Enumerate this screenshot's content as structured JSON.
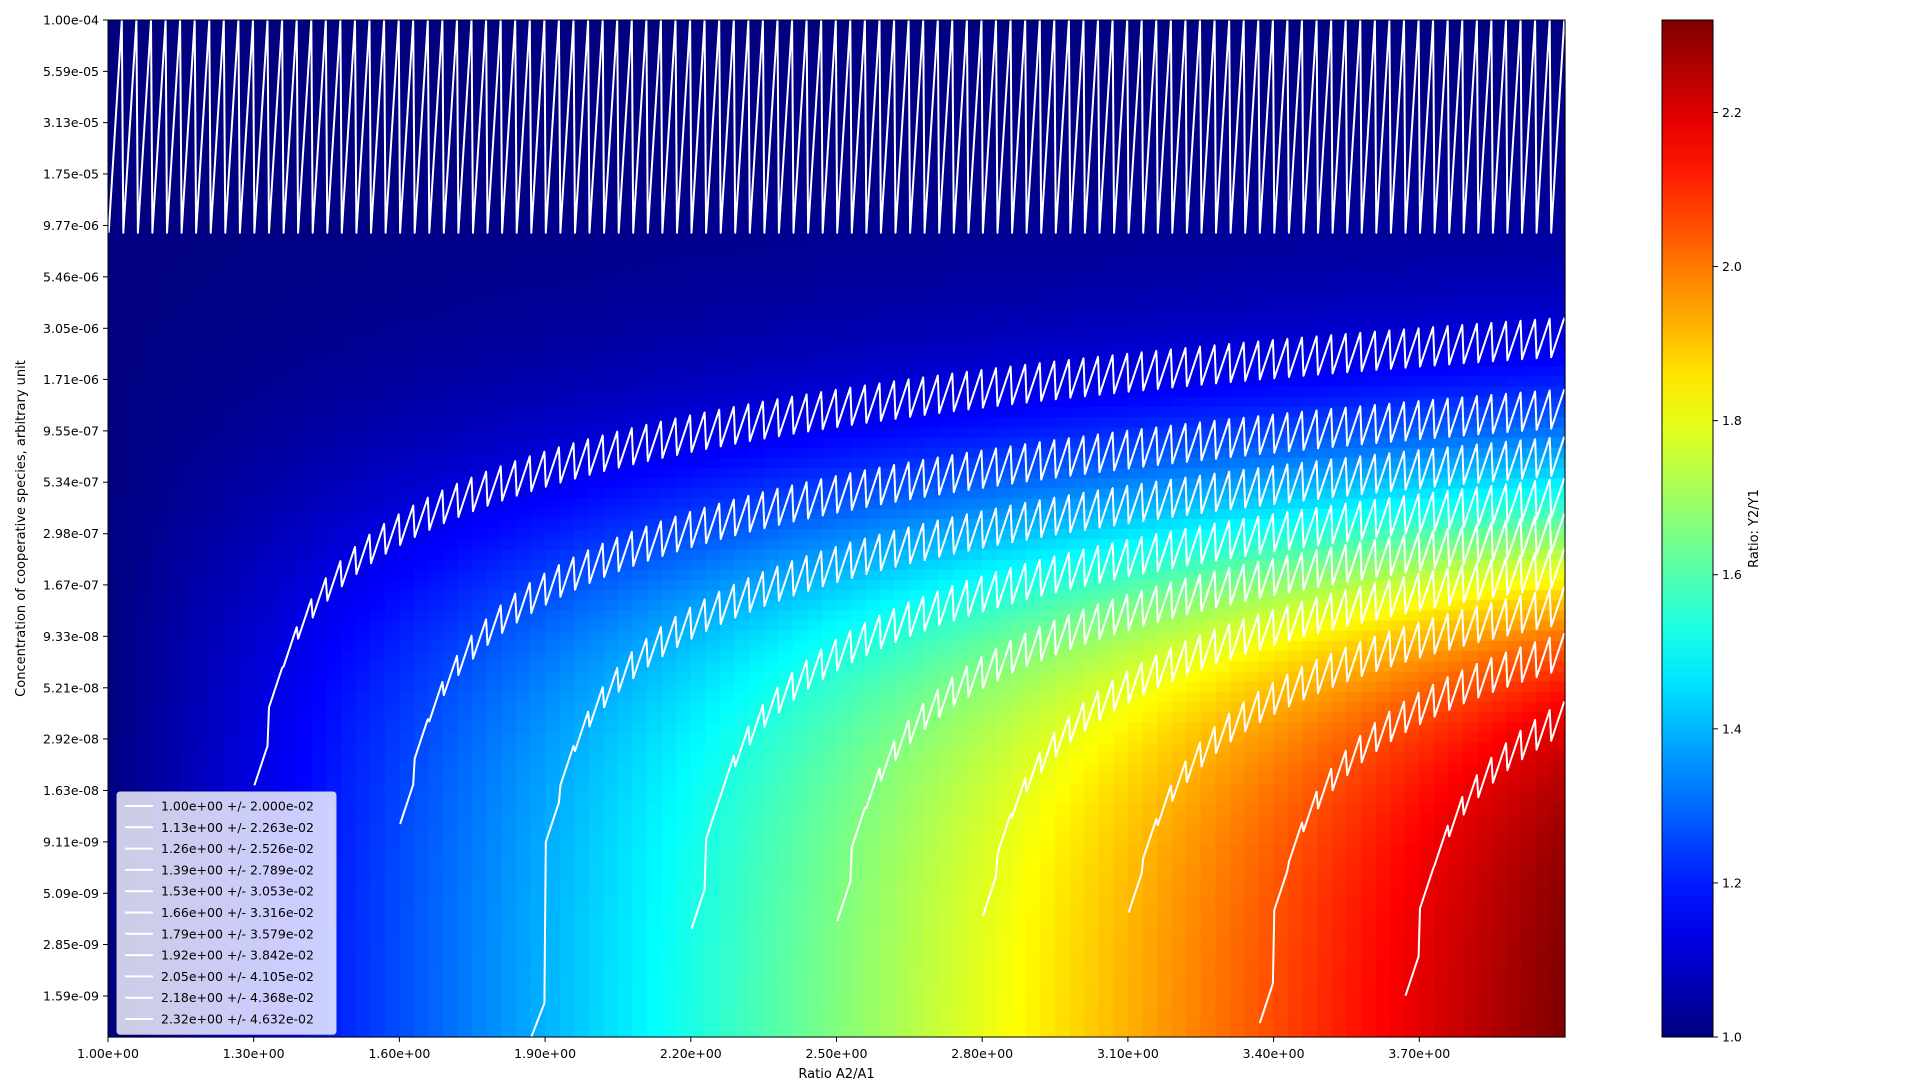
{
  "chart_data": {
    "type": "heatmap",
    "title": "",
    "xlabel": "Ratio A2/A1",
    "ylabel": "Concentration of cooperative species, arbitrary unit",
    "colorbar_label": "Ratio: Y2/Y1",
    "colormap": "jet",
    "xlim": [
      1.0,
      4.0
    ],
    "ylim": [
      1e-09,
      0.0001
    ],
    "y_scale": "log",
    "x_ticks": [
      "1.00e+00",
      "1.30e+00",
      "1.60e+00",
      "1.90e+00",
      "2.20e+00",
      "2.50e+00",
      "2.80e+00",
      "3.10e+00",
      "3.40e+00",
      "3.70e+00"
    ],
    "y_ticks": [
      "1.00e-04",
      "5.59e-05",
      "3.13e-05",
      "1.75e-05",
      "9.77e-06",
      "5.46e-06",
      "3.05e-06",
      "1.71e-06",
      "9.55e-07",
      "5.34e-07",
      "2.98e-07",
      "1.67e-07",
      "9.33e-08",
      "5.21e-08",
      "2.92e-08",
      "1.63e-08",
      "9.11e-09",
      "5.09e-09",
      "2.85e-09",
      "1.59e-09"
    ],
    "colorbar_range": [
      1.0,
      2.32
    ],
    "colorbar_ticks": [
      "1.0",
      "1.2",
      "1.4",
      "1.6",
      "1.8",
      "2.0",
      "2.2"
    ],
    "colorbar_tick_values": [
      1.0,
      1.2,
      1.4,
      1.6,
      1.8,
      2.0,
      2.2
    ],
    "contour_color": "#ffffff",
    "legend_position": "lower-left",
    "legend": [
      {
        "level": 1.0,
        "label": "1.00e+00 +/- 2.000e-02"
      },
      {
        "level": 1.13,
        "label": "1.13e+00 +/- 2.263e-02"
      },
      {
        "level": 1.26,
        "label": "1.26e+00 +/- 2.526e-02"
      },
      {
        "level": 1.39,
        "label": "1.39e+00 +/- 2.789e-02"
      },
      {
        "level": 1.53,
        "label": "1.53e+00 +/- 3.053e-02"
      },
      {
        "level": 1.66,
        "label": "1.66e+00 +/- 3.316e-02"
      },
      {
        "level": 1.79,
        "label": "1.79e+00 +/- 3.579e-02"
      },
      {
        "level": 1.92,
        "label": "1.92e+00 +/- 3.842e-02"
      },
      {
        "level": 2.05,
        "label": "2.05e+00 +/- 4.105e-02"
      },
      {
        "level": 2.18,
        "label": "2.18e+00 +/- 4.368e-02"
      },
      {
        "level": 2.32,
        "label": "2.32e+00 +/- 4.632e-02"
      }
    ]
  }
}
